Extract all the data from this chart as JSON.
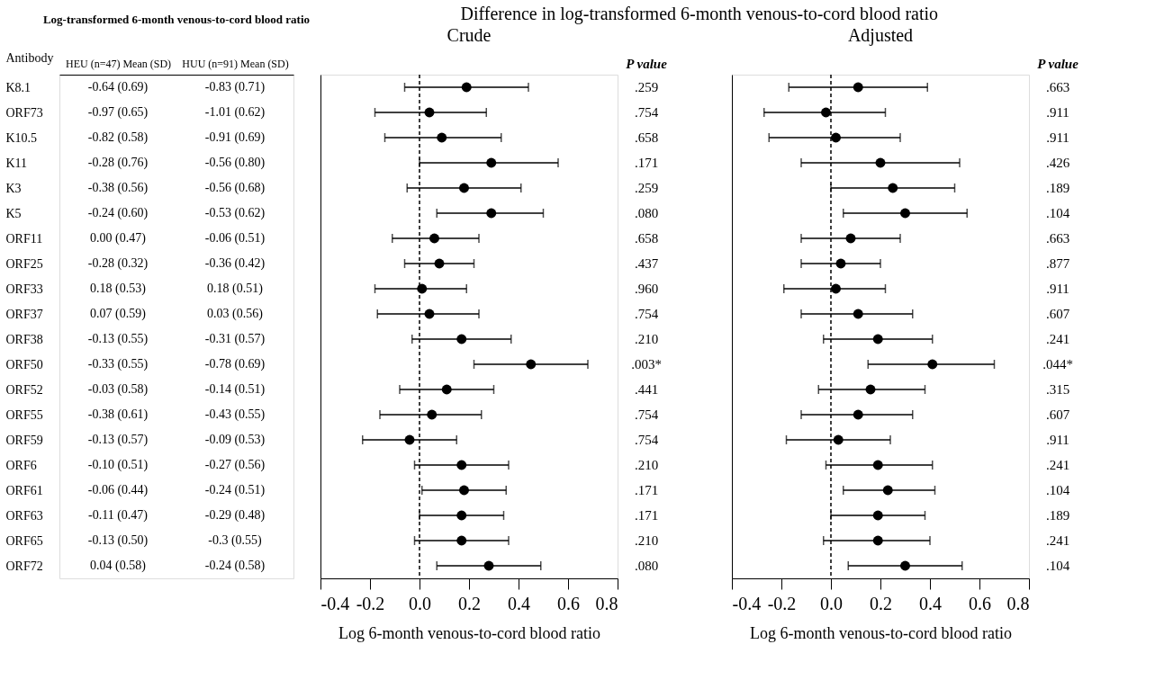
{
  "chart_data": [
    {
      "type": "other",
      "title": "Log-transformed 6-month venous-to-cord blood ratio",
      "ylabel": "Antibody",
      "categories": [
        "HEU (n=47) Mean (SD)",
        "HUU (n=91) Mean (SD)"
      ],
      "y_categories": [
        "K8.1",
        "ORF73",
        "K10.5",
        "K11",
        "K3",
        "K5",
        "ORF11",
        "ORF25",
        "ORF33",
        "ORF37",
        "ORF38",
        "ORF50",
        "ORF52",
        "ORF55",
        "ORF59",
        "ORF6",
        "ORF61",
        "ORF63",
        "ORF65",
        "ORF72"
      ],
      "cell_labels": [
        [
          "-0.64 (0.69)",
          "-0.83 (0.71)"
        ],
        [
          "-0.97 (0.65)",
          "-1.01 (0.62)"
        ],
        [
          "-0.82 (0.58)",
          "-0.91 (0.69)"
        ],
        [
          "-0.28 (0.76)",
          "-0.56 (0.80)"
        ],
        [
          "-0.38 (0.56)",
          "-0.56 (0.68)"
        ],
        [
          "-0.24 (0.60)",
          "-0.53 (0.62)"
        ],
        [
          "0.00 (0.47)",
          "-0.06 (0.51)"
        ],
        [
          "-0.28 (0.32)",
          "-0.36 (0.42)"
        ],
        [
          "0.18 (0.53)",
          "0.18 (0.51)"
        ],
        [
          "0.07 (0.59)",
          "0.03 (0.56)"
        ],
        [
          "-0.13 (0.55)",
          "-0.31 (0.57)"
        ],
        [
          "-0.33 (0.55)",
          "-0.78 (0.69)"
        ],
        [
          "-0.03 (0.58)",
          "-0.14 (0.51)"
        ],
        [
          "-0.38 (0.61)",
          "-0.43 (0.55)"
        ],
        [
          "-0.13 (0.57)",
          "-0.09 (0.53)"
        ],
        [
          "-0.10 (0.51)",
          "-0.27 (0.56)"
        ],
        [
          "-0.06 (0.44)",
          "-0.24 (0.51)"
        ],
        [
          "-0.11 (0.47)",
          "-0.29 (0.48)"
        ],
        [
          "-0.13 (0.50)",
          "-0.3 (0.55)"
        ],
        [
          "0.04 (0.58)",
          "-0.24 (0.58)"
        ]
      ]
    },
    {
      "type": "scatter",
      "orientation": "horizontal",
      "title": "Difference in log-transformed 6-month venous-to-cord blood ratio",
      "subtitle": "Crude",
      "xlabel": "Log 6-month venous-to-cord blood ratio",
      "categories": [
        null,
        null,
        null,
        null,
        null,
        null,
        null,
        null,
        null,
        null,
        null,
        null,
        null,
        null,
        null,
        null,
        null,
        null,
        null,
        null
      ],
      "xlim": [
        -0.4,
        0.8
      ],
      "xticks": [
        -0.4,
        -0.2,
        {
          "value": 0,
          "label": "0.0"
        },
        0.2,
        0.4,
        0.6,
        0.8
      ],
      "tick_labels": "x",
      "marker": "circle",
      "ref_lines": [
        {
          "axis": "x",
          "value": 0,
          "line_style": "dashed",
          "color": "#000000"
        }
      ],
      "annotations": [
        "P value",
        ".259",
        ".754",
        ".658",
        ".171",
        ".259",
        ".080",
        ".658",
        ".437",
        ".960",
        ".754",
        ".210",
        ".003*",
        ".441",
        ".754",
        ".754",
        ".210",
        ".171",
        ".171",
        ".210",
        ".080"
      ],
      "series": [
        {
          "color": "#000000",
          "values": [
            0.19,
            0.04,
            0.09,
            0.29,
            0.18,
            0.29,
            0.06,
            0.08,
            0.01,
            0.04,
            0.17,
            0.45,
            0.11,
            0.05,
            -0.04,
            0.17,
            0.18,
            0.17,
            0.17,
            0.28
          ],
          "errors": [
            [
              -0.06,
              0.44
            ],
            [
              -0.18,
              0.27
            ],
            [
              -0.14,
              0.33
            ],
            [
              0.0,
              0.56
            ],
            [
              -0.05,
              0.41
            ],
            [
              0.07,
              0.5
            ],
            [
              -0.11,
              0.24
            ],
            [
              -0.06,
              0.22
            ],
            [
              -0.18,
              0.19
            ],
            [
              -0.17,
              0.24
            ],
            [
              -0.03,
              0.37
            ],
            [
              0.22,
              0.68
            ],
            [
              -0.08,
              0.3
            ],
            [
              -0.16,
              0.25
            ],
            [
              -0.23,
              0.15
            ],
            [
              -0.02,
              0.36
            ],
            [
              0.01,
              0.35
            ],
            [
              0.0,
              0.34
            ],
            [
              -0.02,
              0.36
            ],
            [
              0.07,
              0.49
            ]
          ]
        }
      ]
    },
    {
      "type": "scatter",
      "orientation": "horizontal",
      "subtitle": "Adjusted",
      "xlabel": "Log 6-month venous-to-cord blood ratio",
      "categories": [
        null,
        null,
        null,
        null,
        null,
        null,
        null,
        null,
        null,
        null,
        null,
        null,
        null,
        null,
        null,
        null,
        null,
        null,
        null,
        null
      ],
      "xlim": [
        -0.4,
        0.8
      ],
      "xticks": [
        -0.4,
        -0.2,
        {
          "value": 0,
          "label": "0.0"
        },
        0.2,
        0.4,
        0.6,
        0.8
      ],
      "tick_labels": "x",
      "marker": "circle",
      "ref_lines": [
        {
          "axis": "x",
          "value": 0,
          "line_style": "dashed",
          "color": "#000000"
        }
      ],
      "annotations": [
        "P value",
        ".663",
        ".911",
        ".911",
        ".426",
        ".189",
        ".104",
        ".663",
        ".877",
        ".911",
        ".607",
        ".241",
        ".044*",
        ".315",
        ".607",
        ".911",
        ".241",
        ".104",
        ".189",
        ".241",
        ".104"
      ],
      "series": [
        {
          "color": "#000000",
          "values": [
            0.11,
            -0.02,
            0.02,
            0.2,
            0.25,
            0.3,
            0.08,
            0.04,
            0.02,
            0.11,
            0.19,
            0.41,
            0.16,
            0.11,
            0.03,
            0.19,
            0.23,
            0.19,
            0.19,
            0.3
          ],
          "errors": [
            [
              -0.17,
              0.39
            ],
            [
              -0.27,
              0.22
            ],
            [
              -0.25,
              0.28
            ],
            [
              -0.12,
              0.52
            ],
            [
              0.0,
              0.5
            ],
            [
              0.05,
              0.55
            ],
            [
              -0.12,
              0.28
            ],
            [
              -0.12,
              0.2
            ],
            [
              -0.19,
              0.22
            ],
            [
              -0.12,
              0.33
            ],
            [
              -0.03,
              0.41
            ],
            [
              0.15,
              0.66
            ],
            [
              -0.05,
              0.38
            ],
            [
              -0.12,
              0.33
            ],
            [
              -0.18,
              0.24
            ],
            [
              -0.02,
              0.41
            ],
            [
              0.05,
              0.42
            ],
            [
              0.0,
              0.38
            ],
            [
              -0.03,
              0.4
            ],
            [
              0.07,
              0.53
            ]
          ]
        }
      ]
    }
  ]
}
